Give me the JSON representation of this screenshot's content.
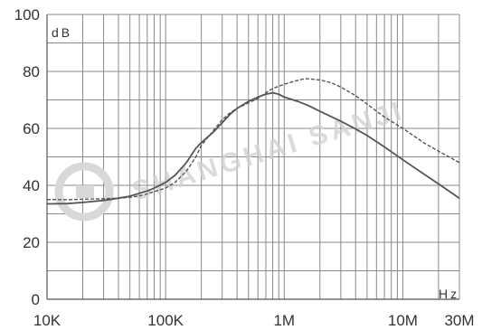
{
  "chart_data": {
    "type": "line",
    "x_scale": "log",
    "xlim": [
      10000,
      30000000
    ],
    "ylim": [
      0,
      100
    ],
    "grid": true,
    "x_ticks": [
      {
        "value": 10000,
        "label": "10K"
      },
      {
        "value": 100000,
        "label": "100K"
      },
      {
        "value": 1000000,
        "label": "1M"
      },
      {
        "value": 10000000,
        "label": "10M"
      },
      {
        "value": 30000000,
        "label": "30M"
      }
    ],
    "y_ticks": [
      {
        "value": 0,
        "label": "0"
      },
      {
        "value": 20,
        "label": "20"
      },
      {
        "value": 40,
        "label": "40"
      },
      {
        "value": 60,
        "label": "60"
      },
      {
        "value": 80,
        "label": "80"
      },
      {
        "value": 100,
        "label": "100"
      }
    ],
    "ylabel": "dB",
    "xlabel": "Hz",
    "series": [
      {
        "style": "solid",
        "color": "#555555",
        "points": [
          [
            10000,
            33.5
          ],
          [
            15000,
            33.6
          ],
          [
            20000,
            34.0
          ],
          [
            30000,
            34.7
          ],
          [
            40000,
            35.5
          ],
          [
            50000,
            36.2
          ],
          [
            60000,
            37.2
          ],
          [
            70000,
            38.0
          ],
          [
            80000,
            39.0
          ],
          [
            100000,
            41.0
          ],
          [
            120000,
            43.5
          ],
          [
            150000,
            48.0
          ],
          [
            180000,
            53.0
          ],
          [
            200000,
            55.0
          ],
          [
            250000,
            58.5
          ],
          [
            300000,
            62.0
          ],
          [
            350000,
            65.0
          ],
          [
            400000,
            67.0
          ],
          [
            500000,
            69.5
          ],
          [
            600000,
            71.0
          ],
          [
            700000,
            72.0
          ],
          [
            800000,
            72.5
          ],
          [
            900000,
            72.0
          ],
          [
            1000000,
            71.0
          ],
          [
            1300000,
            69.5
          ],
          [
            1600000,
            68.0
          ],
          [
            2000000,
            66.0
          ],
          [
            3000000,
            62.5
          ],
          [
            4000000,
            59.8
          ],
          [
            5000000,
            57.5
          ],
          [
            7000000,
            53.5
          ],
          [
            10000000,
            49.0
          ],
          [
            15000000,
            44.0
          ],
          [
            20000000,
            40.5
          ],
          [
            30000000,
            35.5
          ]
        ]
      },
      {
        "style": "dashed",
        "color": "#555555",
        "points": [
          [
            10000,
            35.0
          ],
          [
            15000,
            35.0
          ],
          [
            20000,
            35.1
          ],
          [
            30000,
            35.3
          ],
          [
            40000,
            35.5
          ],
          [
            50000,
            35.8
          ],
          [
            60000,
            36.3
          ],
          [
            70000,
            37.0
          ],
          [
            80000,
            37.8
          ],
          [
            100000,
            39.0
          ],
          [
            120000,
            41.0
          ],
          [
            150000,
            45.0
          ],
          [
            180000,
            50.0
          ],
          [
            200000,
            54.0
          ],
          [
            250000,
            59.0
          ],
          [
            300000,
            63.0
          ],
          [
            350000,
            65.5
          ],
          [
            400000,
            67.0
          ],
          [
            500000,
            69.0
          ],
          [
            600000,
            70.5
          ],
          [
            700000,
            72.5
          ],
          [
            800000,
            74.0
          ],
          [
            1000000,
            75.5
          ],
          [
            1200000,
            76.5
          ],
          [
            1500000,
            77.5
          ],
          [
            2000000,
            77.0
          ],
          [
            2500000,
            76.0
          ],
          [
            3000000,
            74.5
          ],
          [
            4000000,
            71.5
          ],
          [
            5000000,
            68.5
          ],
          [
            7000000,
            64.0
          ],
          [
            10000000,
            60.0
          ],
          [
            15000000,
            55.0
          ],
          [
            20000000,
            52.0
          ],
          [
            30000000,
            48.0
          ]
        ]
      }
    ],
    "watermark": "SHANGHAI SANJI"
  }
}
